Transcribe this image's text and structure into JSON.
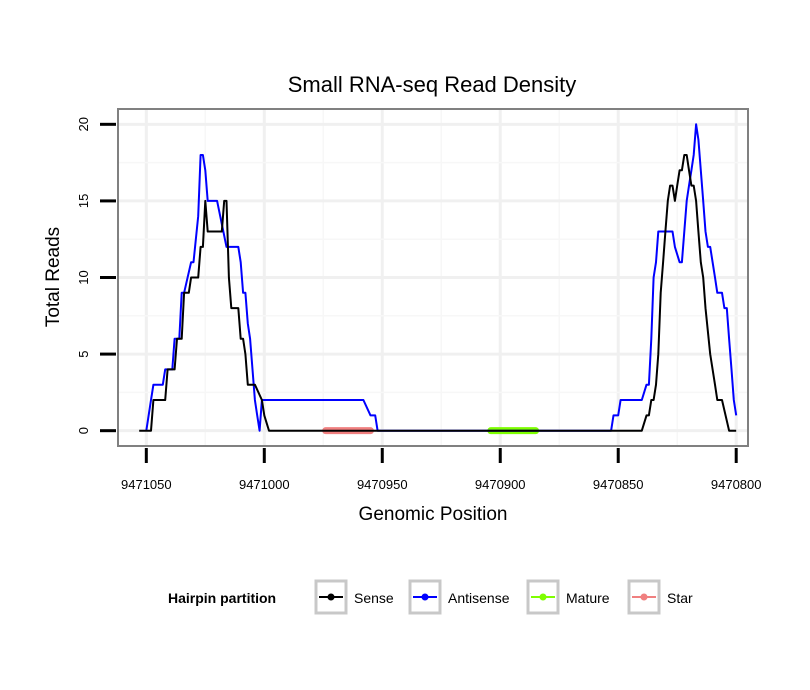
{
  "chart_data": {
    "type": "line",
    "title": "Small RNA-seq Read Density",
    "xlabel": "Genomic Position",
    "ylabel": "Total Reads",
    "xlim": [
      9471062,
      9470795
    ],
    "ylim": [
      -1,
      21
    ],
    "x_reversed": true,
    "x_ticks": [
      9471050,
      9471000,
      9470950,
      9470900,
      9470850,
      9470800
    ],
    "x_tick_labels": [
      "9471050",
      "9471000",
      "9470950",
      "9470900",
      "9470850",
      "9470800"
    ],
    "y_ticks": [
      0,
      5,
      10,
      15,
      20
    ],
    "y_tick_labels": [
      "0",
      "5",
      "10",
      "15",
      "20"
    ],
    "grid": true,
    "legend": {
      "title": "Hairpin partition",
      "position": "bottom",
      "entries": [
        {
          "name": "Sense",
          "color": "#000000"
        },
        {
          "name": "Antisense",
          "color": "#0000ff"
        },
        {
          "name": "Mature",
          "color": "#7fff00"
        },
        {
          "name": "Star",
          "color": "#f08080"
        }
      ]
    },
    "series": [
      {
        "name": "Sense",
        "color": "#000000",
        "x": [
          9471053,
          9471048,
          9471047,
          9471042,
          9471041,
          9471038,
          9471037,
          9471035,
          9471034,
          9471032,
          9471031,
          9471028,
          9471027,
          9471026,
          9471025,
          9471024,
          9471023,
          9471018,
          9471017,
          9471016,
          9471015,
          9471014,
          9471012,
          9471011,
          9471010,
          9471009,
          9471008,
          9471007,
          9471004,
          9471001,
          9471000,
          9470998,
          9470996,
          9470990,
          9470960,
          9470940,
          9470900,
          9470860,
          9470842,
          9470840,
          9470838,
          9470837,
          9470836,
          9470835,
          9470834,
          9470833,
          9470832,
          9470831,
          9470830,
          9470829,
          9470828,
          9470827,
          9470826,
          9470825,
          9470824,
          9470823,
          9470822,
          9470821,
          9470820,
          9470819,
          9470818,
          9470817,
          9470816,
          9470815,
          9470814,
          9470813,
          9470811,
          9470809,
          9470808,
          9470806,
          9470803,
          9470800
        ],
        "values": [
          0,
          0,
          2,
          2,
          4,
          4,
          6,
          6,
          9,
          9,
          10,
          10,
          12,
          12,
          15,
          13,
          13,
          13,
          15,
          15,
          10,
          8,
          8,
          8,
          6,
          6,
          5,
          3,
          3,
          2,
          1,
          0,
          0,
          0,
          0,
          0,
          0,
          0,
          0,
          0,
          1,
          1,
          2,
          2,
          3,
          5,
          9,
          11,
          13,
          15,
          16,
          16,
          15,
          16,
          17,
          17,
          18,
          18,
          17,
          16,
          16,
          15,
          13,
          11,
          10,
          8,
          5,
          3,
          2,
          2,
          0,
          0
        ]
      },
      {
        "name": "Antisense",
        "color": "#0000ff",
        "x": [
          9471050,
          9471048,
          9471047,
          9471046,
          9471043,
          9471042,
          9471039,
          9471038,
          9471036,
          9471035,
          9471034,
          9471031,
          9471030,
          9471028,
          9471027,
          9471026,
          9471025,
          9471024,
          9471023,
          9471022,
          9471021,
          9471020,
          9471016,
          9471015,
          9471014,
          9471011,
          9471010,
          9471009,
          9471008,
          9471007,
          9471006,
          9471005,
          9471004,
          9471003,
          9471002,
          9471001,
          9471000,
          9470999,
          9470998,
          9470997,
          9470996,
          9470995,
          9470994,
          9470990,
          9470980,
          9470970,
          9470960,
          9470958,
          9470955,
          9470953,
          9470952,
          9470950,
          9470930,
          9470900,
          9470870,
          9470853,
          9470852,
          9470850,
          9470849,
          9470848,
          9470844,
          9470843,
          9470842,
          9470840,
          9470838,
          9470837,
          9470836,
          9470835,
          9470834,
          9470833,
          9470832,
          9470831,
          9470829,
          9470827,
          9470826,
          9470824,
          9470823,
          9470822,
          9470821,
          9470820,
          9470819,
          9470818,
          9470817,
          9470816,
          9470815,
          9470814,
          9470813,
          9470812,
          9470811,
          9470810,
          9470809,
          9470808,
          9470807,
          9470806,
          9470805,
          9470804,
          9470803,
          9470802,
          9470801,
          9470800
        ],
        "values": [
          0,
          2,
          3,
          3,
          3,
          4,
          4,
          6,
          6,
          9,
          9,
          11,
          11,
          14,
          18,
          18,
          17,
          15,
          15,
          15,
          15,
          15,
          12,
          12,
          12,
          12,
          11,
          9,
          9,
          7,
          6,
          4,
          2,
          1,
          0,
          2,
          2,
          2,
          2,
          2,
          2,
          2,
          2,
          2,
          2,
          2,
          2,
          2,
          1,
          1,
          0,
          0,
          0,
          0,
          0,
          0,
          1,
          1,
          2,
          2,
          2,
          2,
          2,
          2,
          3,
          3,
          6,
          10,
          11,
          13,
          13,
          13,
          13,
          13,
          12,
          11,
          11,
          13,
          15,
          16,
          17,
          18,
          20,
          19,
          17,
          15,
          13,
          12,
          12,
          11,
          10,
          9,
          9,
          9,
          8,
          8,
          6,
          4,
          2,
          1
        ]
      },
      {
        "name": "Mature",
        "color": "#7fff00",
        "x": [
          9470904,
          9470885
        ],
        "values": [
          0,
          0
        ]
      },
      {
        "name": "Star",
        "color": "#f08080",
        "x": [
          9470974,
          9470955
        ],
        "values": [
          0,
          0
        ]
      }
    ]
  }
}
